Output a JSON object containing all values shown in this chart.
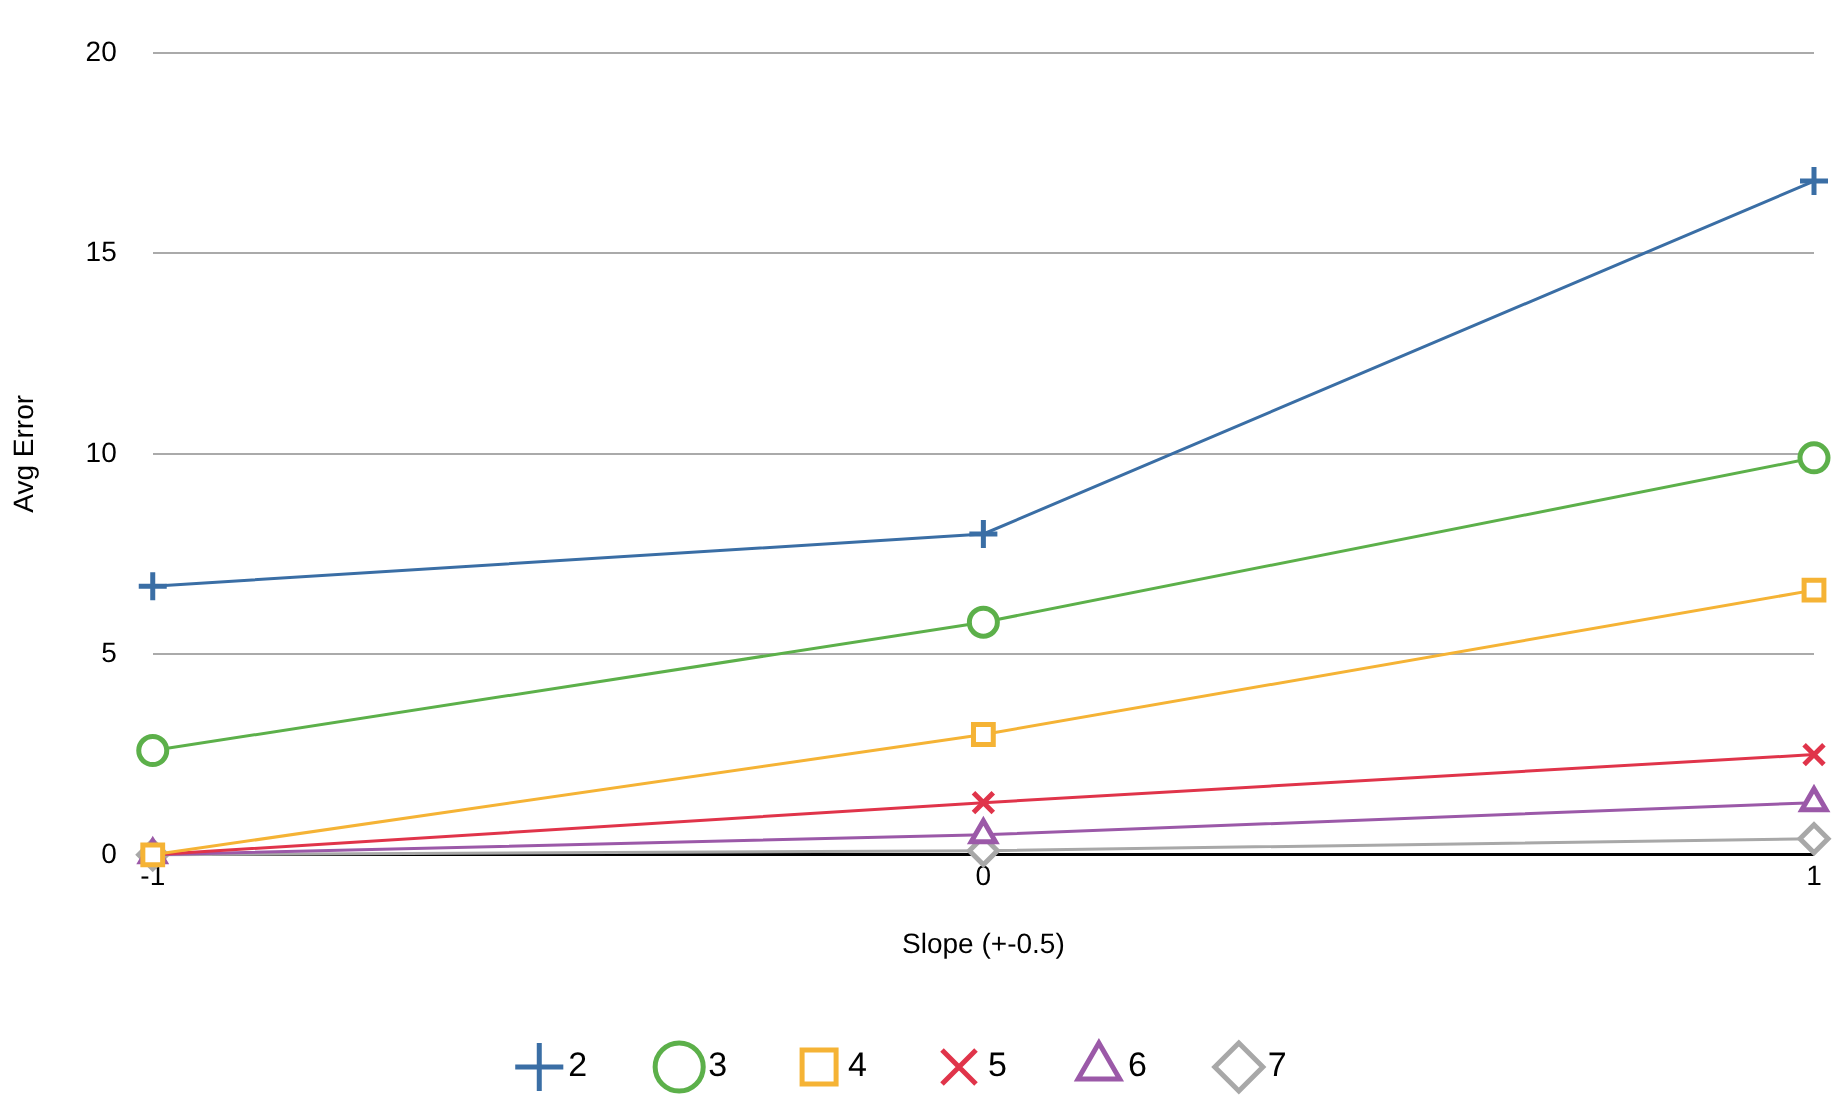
{
  "chart_data": {
    "type": "line",
    "xlabel": "Slope (+-0.5)",
    "ylabel": "Avg Error",
    "x": [
      -1,
      0,
      1
    ],
    "xlim": [
      -1,
      1
    ],
    "xticks": [
      -1,
      0,
      1
    ],
    "ylim": [
      0,
      20
    ],
    "yticks": [
      0,
      5,
      10,
      15,
      20
    ],
    "grid": "y",
    "legend": "bottom",
    "series": [
      {
        "name": "2",
        "color": "#3a6ea5",
        "marker": "cross",
        "values": [
          6.7,
          8.0,
          16.8
        ]
      },
      {
        "name": "3",
        "color": "#5cb04a",
        "marker": "circle",
        "values": [
          2.6,
          5.8,
          9.9
        ]
      },
      {
        "name": "4",
        "color": "#f5b335",
        "marker": "square",
        "values": [
          0,
          3.0,
          6.6
        ]
      },
      {
        "name": "5",
        "color": "#e0344a",
        "marker": "x",
        "values": [
          0,
          1.3,
          2.5
        ]
      },
      {
        "name": "6",
        "color": "#9b59a8",
        "marker": "triangle",
        "values": [
          0,
          0.5,
          1.3
        ]
      },
      {
        "name": "7",
        "color": "#a8a8a8",
        "marker": "diamond",
        "values": [
          0,
          0.1,
          0.4
        ]
      }
    ]
  }
}
